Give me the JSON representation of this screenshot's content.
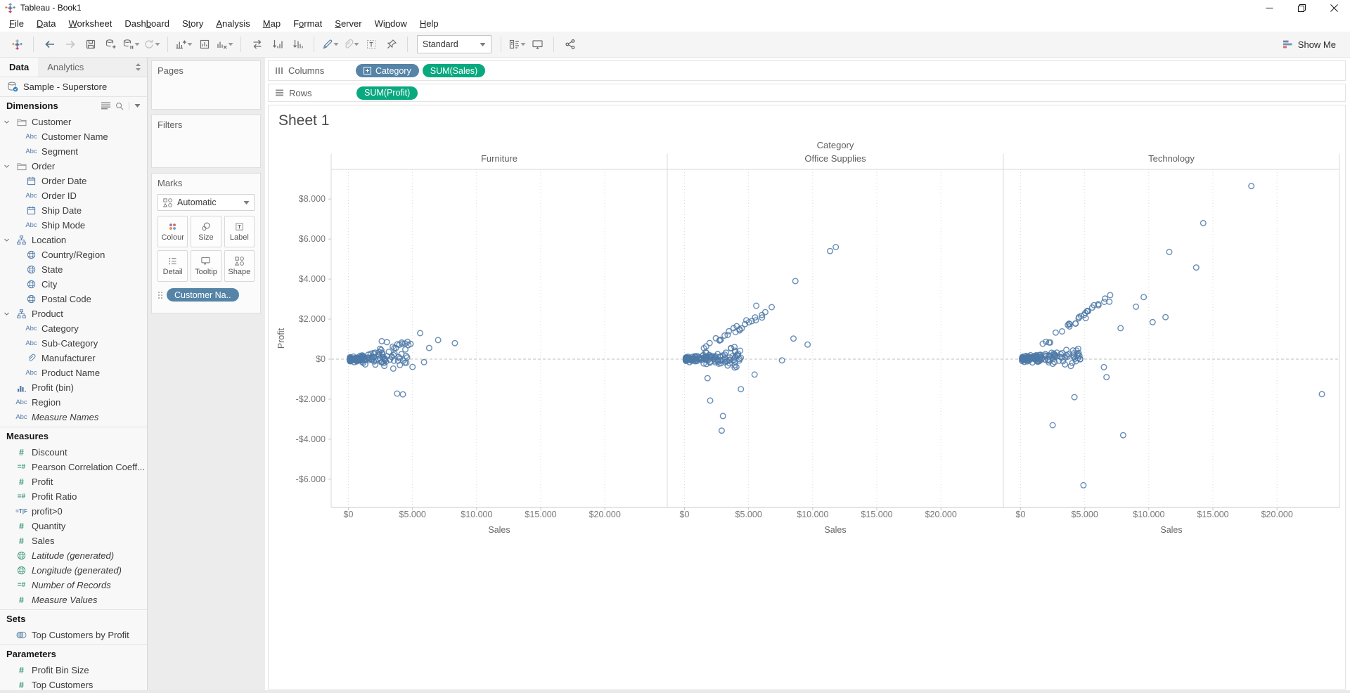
{
  "window": {
    "title": "Tableau - Book1"
  },
  "menubar": {
    "items": [
      {
        "label": "File",
        "underline": 0
      },
      {
        "label": "Data",
        "underline": 0
      },
      {
        "label": "Worksheet",
        "underline": 0
      },
      {
        "label": "Dashboard",
        "underline": 4
      },
      {
        "label": "Story",
        "underline": 1
      },
      {
        "label": "Analysis",
        "underline": 0
      },
      {
        "label": "Map",
        "underline": 0
      },
      {
        "label": "Format",
        "underline": 1
      },
      {
        "label": "Server",
        "underline": 0
      },
      {
        "label": "Window",
        "underline": 2
      },
      {
        "label": "Help",
        "underline": 0
      }
    ]
  },
  "toolbar": {
    "fit_selector": "Standard",
    "show_me_label": "Show Me",
    "buttons": [
      {
        "id": "tableau-logo",
        "divider_after": true
      },
      {
        "id": "undo"
      },
      {
        "id": "redo",
        "disabled": true
      },
      {
        "id": "save"
      },
      {
        "id": "new-data-source"
      },
      {
        "id": "pause-auto-updates",
        "caret": true
      },
      {
        "id": "run-update",
        "caret": true,
        "disabled": true,
        "divider_after": true
      },
      {
        "id": "new-worksheet",
        "caret": true
      },
      {
        "id": "duplicate"
      },
      {
        "id": "clear-sheet",
        "caret": true,
        "divider_after": true
      },
      {
        "id": "swap-rows-columns"
      },
      {
        "id": "sort-ascending"
      },
      {
        "id": "sort-descending",
        "divider_after": true
      },
      {
        "id": "highlight",
        "caret": true
      },
      {
        "id": "group-members",
        "caret": true,
        "disabled": true
      },
      {
        "id": "show-mark-labels"
      },
      {
        "id": "fix-axes",
        "divider_after": true
      },
      {
        "id": "fit-select"
      },
      {
        "id": "show-hide-cards",
        "caret": true,
        "divider_after_pre": true
      },
      {
        "id": "presentation-mode",
        "divider_after": true
      },
      {
        "id": "share"
      }
    ]
  },
  "data_pane": {
    "tabs": [
      {
        "label": "Data",
        "active": true
      },
      {
        "label": "Analytics",
        "active": false
      }
    ],
    "datasource": "Sample - Superstore",
    "dimensions": {
      "header": "Dimensions",
      "items": [
        {
          "label": "Customer",
          "icon": "folder",
          "caret": true
        },
        {
          "label": "Customer Name",
          "icon": "abc",
          "indent": 1
        },
        {
          "label": "Segment",
          "icon": "abc",
          "indent": 1
        },
        {
          "label": "Order",
          "icon": "folder",
          "caret": true
        },
        {
          "label": "Order Date",
          "icon": "calendar",
          "indent": 1
        },
        {
          "label": "Order ID",
          "icon": "abc",
          "indent": 1
        },
        {
          "label": "Ship Date",
          "icon": "calendar",
          "indent": 1
        },
        {
          "label": "Ship Mode",
          "icon": "abc",
          "indent": 1
        },
        {
          "label": "Location",
          "icon": "hierarchy",
          "caret": true
        },
        {
          "label": "Country/Region",
          "icon": "globe",
          "indent": 1
        },
        {
          "label": "State",
          "icon": "globe",
          "indent": 1
        },
        {
          "label": "City",
          "icon": "globe",
          "indent": 1
        },
        {
          "label": "Postal Code",
          "icon": "globe",
          "indent": 1
        },
        {
          "label": "Product",
          "icon": "hierarchy",
          "caret": true
        },
        {
          "label": "Category",
          "icon": "abc",
          "indent": 1
        },
        {
          "label": "Sub-Category",
          "icon": "abc",
          "indent": 1
        },
        {
          "label": "Manufacturer",
          "icon": "paperclip",
          "indent": 1
        },
        {
          "label": "Product Name",
          "icon": "abc",
          "indent": 1
        },
        {
          "label": "Profit (bin)",
          "icon": "histogram"
        },
        {
          "label": "Region",
          "icon": "abc"
        },
        {
          "label": "Measure Names",
          "icon": "abc",
          "italic": true
        }
      ]
    },
    "measures": {
      "header": "Measures",
      "items": [
        {
          "label": "Discount",
          "icon": "num"
        },
        {
          "label": "Pearson Correlation Coeff...",
          "icon": "calc"
        },
        {
          "label": "Profit",
          "icon": "num"
        },
        {
          "label": "Profit Ratio",
          "icon": "calc"
        },
        {
          "label": "profit>0",
          "icon": "tf"
        },
        {
          "label": "Quantity",
          "icon": "num"
        },
        {
          "label": "Sales",
          "icon": "num"
        },
        {
          "label": "Latitude (generated)",
          "icon": "globe-green",
          "italic": true
        },
        {
          "label": "Longitude (generated)",
          "icon": "globe-green",
          "italic": true
        },
        {
          "label": "Number of Records",
          "icon": "calc",
          "italic": true
        },
        {
          "label": "Measure Values",
          "icon": "num",
          "italic": true
        }
      ]
    },
    "sets": {
      "header": "Sets",
      "items": [
        {
          "label": "Top Customers by Profit",
          "icon": "venn"
        }
      ]
    },
    "parameters": {
      "header": "Parameters",
      "items": [
        {
          "label": "Profit Bin Size",
          "icon": "num"
        },
        {
          "label": "Top Customers",
          "icon": "num"
        }
      ]
    }
  },
  "cards": {
    "pages_label": "Pages",
    "filters_label": "Filters",
    "marks": {
      "label": "Marks",
      "mark_type": "Automatic",
      "buttons": [
        {
          "label": "Colour",
          "icon": "colour"
        },
        {
          "label": "Size",
          "icon": "size"
        },
        {
          "label": "Label",
          "icon": "labelbtn"
        },
        {
          "label": "Detail",
          "icon": "detail"
        },
        {
          "label": "Tooltip",
          "icon": "tooltip"
        },
        {
          "label": "Shape",
          "icon": "shapebtn"
        }
      ],
      "pills": [
        {
          "label": "Customer Na..",
          "type": "dimension",
          "icon": "pill-detail"
        }
      ]
    }
  },
  "shelves": {
    "columns": {
      "label": "Columns",
      "pills": [
        {
          "label": "Category",
          "type": "dimension",
          "plus_icon": true
        },
        {
          "label": "SUM(Sales)",
          "type": "measure"
        }
      ]
    },
    "rows": {
      "label": "Rows",
      "pills": [
        {
          "label": "SUM(Profit)",
          "type": "measure"
        }
      ]
    }
  },
  "sheet": {
    "title": "Sheet 1"
  },
  "chart_data": {
    "type": "scatter",
    "title": "Sheet 1",
    "column_field": "Category",
    "panes": [
      "Furniture",
      "Office Supplies",
      "Technology"
    ],
    "xlabel": "Sales",
    "ylabel": "Profit",
    "x_axis": {
      "ticks": [
        0,
        5000,
        10000,
        15000,
        20000
      ],
      "tick_labels": [
        "$0",
        "$5.000",
        "$10.000",
        "$15.000",
        "$20.000"
      ],
      "max": 24800
    },
    "y_axis": {
      "ticks": [
        8000,
        6000,
        4000,
        2000,
        0,
        -2000,
        -4000,
        -6000
      ],
      "tick_labels": [
        "$8.000",
        "$6.000",
        "$4.000",
        "$2.000",
        "$0",
        "-$2.000",
        "-$4.000",
        "-$6.000"
      ],
      "min": -7400,
      "max": 9450,
      "zero_line": true
    },
    "grid": {
      "vertical_dotted": true
    },
    "mark": {
      "shape": "open-circle",
      "color": "#4e79a7",
      "radius": 3.8,
      "opacity": 0.85
    },
    "series": [
      {
        "name": "Furniture",
        "seed": 11,
        "outliers": [
          [
            5600,
            1300
          ],
          [
            7000,
            950
          ],
          [
            8300,
            800
          ],
          [
            4200,
            770
          ],
          [
            2600,
            900
          ],
          [
            3000,
            850
          ],
          [
            3500,
            -470
          ],
          [
            5000,
            -390
          ],
          [
            3800,
            -1720
          ],
          [
            4250,
            -1760
          ],
          [
            6300,
            560
          ],
          [
            5900,
            -150
          ]
        ],
        "cluster_model": {
          "count": 135,
          "sales_min": 120,
          "sales_span": 4600,
          "skew": 1.8,
          "spread_base": 110,
          "spread_slope": 0.15,
          "drift": 0.02
        },
        "trend_arm": {
          "count": 14,
          "sales_from": 1800,
          "sales_to": 5600,
          "profit_ratio": 0.17,
          "jitter": 260
        }
      },
      {
        "name": "Office Supplies",
        "seed": 23,
        "outliers": [
          [
            11800,
            5600
          ],
          [
            11350,
            5400
          ],
          [
            8650,
            3900
          ],
          [
            5600,
            2670
          ],
          [
            8500,
            1030
          ],
          [
            9600,
            730
          ],
          [
            4300,
            1500
          ],
          [
            2000,
            -2070
          ],
          [
            1800,
            -950
          ],
          [
            3000,
            -2840
          ],
          [
            2900,
            -3570
          ],
          [
            5470,
            -770
          ],
          [
            4400,
            -1500
          ],
          [
            6800,
            2600
          ],
          [
            7600,
            -60
          ]
        ],
        "cluster_model": {
          "count": 140,
          "sales_min": 100,
          "sales_span": 4300,
          "skew": 1.8,
          "spread_base": 120,
          "spread_slope": 0.17,
          "drift": 0.03
        },
        "trend_arm": {
          "count": 24,
          "sales_from": 1200,
          "sales_to": 6700,
          "profit_ratio": 0.37,
          "jitter": 320
        }
      },
      {
        "name": "Technology",
        "seed": 37,
        "outliers": [
          [
            18000,
            8650
          ],
          [
            14250,
            6800
          ],
          [
            11600,
            5360
          ],
          [
            13700,
            4580
          ],
          [
            11300,
            2100
          ],
          [
            9600,
            3100
          ],
          [
            9000,
            2620
          ],
          [
            23500,
            -1750
          ],
          [
            8000,
            -3800
          ],
          [
            4900,
            -6300
          ],
          [
            2500,
            -3300
          ],
          [
            4200,
            -1900
          ],
          [
            6700,
            -900
          ],
          [
            6500,
            -400
          ],
          [
            7800,
            1550
          ],
          [
            10300,
            1850
          ]
        ],
        "cluster_model": {
          "count": 140,
          "sales_min": 120,
          "sales_span": 4600,
          "skew": 1.8,
          "spread_base": 120,
          "spread_slope": 0.17,
          "drift": 0.03
        },
        "trend_arm": {
          "count": 30,
          "sales_from": 1500,
          "sales_to": 7000,
          "profit_ratio": 0.44,
          "jitter": 380
        }
      }
    ]
  },
  "colors": {
    "dimension_pill": "#5584a7",
    "measure_pill": "#09a97f",
    "mark_blue": "#4e79a7",
    "dimension_icon": "#4e79a7",
    "measure_icon": "#3a9a78",
    "toolbar_bg": "#f5f5f5"
  }
}
